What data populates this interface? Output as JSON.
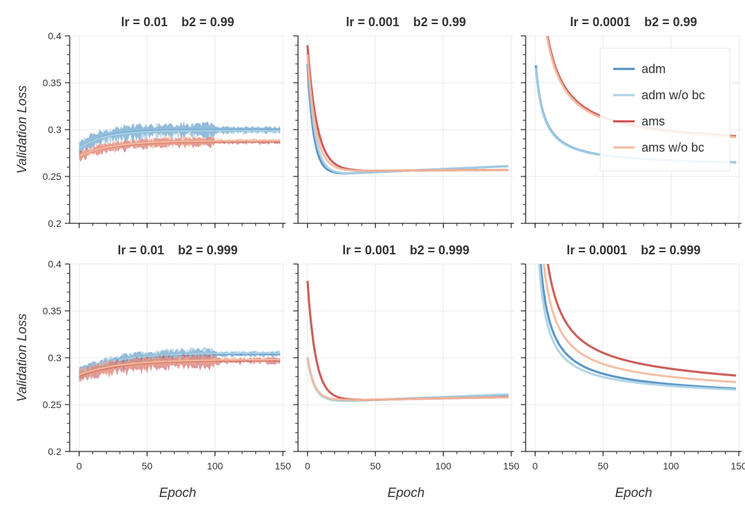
{
  "chart_data": {
    "type": "line",
    "title": "",
    "ylabel": "Validation Loss",
    "xlabel": "Epoch",
    "xlim": [
      -7,
      152
    ],
    "ylim": [
      0.2,
      0.4
    ],
    "xticks": [
      0,
      50,
      100,
      150
    ],
    "xtick_labels": [
      "0",
      "50",
      "100",
      "150"
    ],
    "yticks": [
      0.2,
      0.25,
      0.3,
      0.35,
      0.4
    ],
    "ytick_labels": [
      "0.2",
      "0.25",
      "0.3",
      "0.35",
      "0.4"
    ],
    "grid": true,
    "legend": {
      "placement": "top-right of the top-right panel",
      "entries": [
        {
          "label": "adm",
          "color": "#4a8cc0"
        },
        {
          "label": "adm w/o bc",
          "color": "#a9d0e4"
        },
        {
          "label": "ams",
          "color": "#c84e48"
        },
        {
          "label": "ams w/o bc",
          "color": "#f3b99e"
        }
      ]
    },
    "series_styles": {
      "adm": {
        "color": "#4a8cc0",
        "noisy_color": "#3f82bb"
      },
      "adm w/o bc": {
        "color": "#a9d0e4",
        "noisy_color": "#8fc0dc"
      },
      "ams": {
        "color": "#c84e48",
        "noisy_color": "#c0454a"
      },
      "ams w/o bc": {
        "color": "#f3b99e",
        "noisy_color": "#f0a486"
      }
    },
    "panels": [
      {
        "title": "lr = 0.01    b2 = 0.99",
        "row": 0,
        "col": 0,
        "noisy": true,
        "series": [
          {
            "name": "adm",
            "start": 0.28,
            "end": 0.3,
            "tau": 18,
            "noise": 0.006
          },
          {
            "name": "adm w/o bc",
            "start": 0.28,
            "end": 0.299,
            "tau": 18,
            "noise": 0.006
          },
          {
            "name": "ams",
            "start": 0.272,
            "end": 0.287,
            "tau": 25,
            "noise": 0.004
          },
          {
            "name": "ams w/o bc",
            "start": 0.272,
            "end": 0.288,
            "tau": 25,
            "noise": 0.004
          }
        ]
      },
      {
        "title": "lr = 0.001    b2 = 0.99",
        "row": 0,
        "col": 1,
        "noisy": false,
        "series": [
          {
            "name": "adm",
            "start": 0.37,
            "asymptote": 0.253,
            "tau": 4.5,
            "end": 0.261,
            "min_epoch": 25
          },
          {
            "name": "adm w/o bc",
            "start": 0.385,
            "asymptote": 0.253,
            "tau": 5,
            "end": 0.261,
            "min_epoch": 25
          },
          {
            "name": "ams",
            "start": 0.39,
            "asymptote": 0.256,
            "tau": 7,
            "end": 0.257,
            "min_epoch": 40
          },
          {
            "name": "ams w/o bc",
            "start": 0.38,
            "asymptote": 0.256,
            "tau": 6,
            "end": 0.257,
            "min_epoch": 40
          }
        ]
      },
      {
        "title": "lr = 0.0001    b2 = 0.99",
        "row": 0,
        "col": 2,
        "noisy": false,
        "series": [
          {
            "name": "adm",
            "asymptote": 0.262,
            "k": 0.76,
            "x0": -6,
            "p": 1.05,
            "end": 0.265
          },
          {
            "name": "adm w/o bc",
            "asymptote": 0.262,
            "k": 0.74,
            "x0": -6,
            "p": 1.05,
            "end": 0.265
          },
          {
            "name": "ams",
            "asymptote": 0.285,
            "k": 2.0,
            "x0": -6,
            "p": 1.05,
            "end": 0.293
          },
          {
            "name": "ams w/o bc",
            "asymptote": 0.284,
            "k": 1.95,
            "x0": -6,
            "p": 1.05,
            "end": 0.292
          }
        ]
      },
      {
        "title": "lr = 0.01    b2 = 0.999",
        "row": 1,
        "col": 0,
        "noisy": true,
        "series": [
          {
            "name": "adm",
            "start": 0.283,
            "end": 0.304,
            "tau": 28,
            "noise": 0.005
          },
          {
            "name": "adm w/o bc",
            "start": 0.283,
            "end": 0.305,
            "tau": 28,
            "noise": 0.005
          },
          {
            "name": "ams",
            "start": 0.28,
            "end": 0.297,
            "tau": 30,
            "noise": 0.006
          },
          {
            "name": "ams w/o bc",
            "start": 0.282,
            "end": 0.298,
            "tau": 30,
            "noise": 0.005
          }
        ]
      },
      {
        "title": "lr = 0.001    b2 = 0.999",
        "row": 1,
        "col": 1,
        "noisy": false,
        "series": [
          {
            "name": "adm",
            "start": 0.3,
            "asymptote": 0.254,
            "tau": 5,
            "end": 0.26,
            "min_epoch": 30
          },
          {
            "name": "adm w/o bc",
            "start": 0.3,
            "asymptote": 0.254,
            "tau": 5,
            "end": 0.261,
            "min_epoch": 30
          },
          {
            "name": "ams",
            "start": 0.382,
            "asymptote": 0.255,
            "tau": 6,
            "end": 0.258,
            "min_epoch": 40
          },
          {
            "name": "ams w/o bc",
            "start": 0.3,
            "asymptote": 0.255,
            "tau": 5,
            "end": 0.258,
            "min_epoch": 40
          }
        ]
      },
      {
        "title": "lr = 0.0001    b2 = 0.999",
        "row": 1,
        "col": 2,
        "noisy": false,
        "series": [
          {
            "name": "adm",
            "asymptote": 0.264,
            "k": 1.1,
            "x0": -4,
            "p": 1.0,
            "end": 0.267
          },
          {
            "name": "adm w/o bc",
            "asymptote": 0.263,
            "k": 0.95,
            "x0": -4,
            "p": 1.0,
            "end": 0.266
          },
          {
            "name": "ams",
            "asymptote": 0.277,
            "k": 1.65,
            "x0": -4,
            "p": 1.0,
            "end": 0.281
          },
          {
            "name": "ams w/o bc",
            "asymptote": 0.27,
            "k": 1.35,
            "x0": -4,
            "p": 1.0,
            "end": 0.274
          }
        ]
      }
    ]
  }
}
